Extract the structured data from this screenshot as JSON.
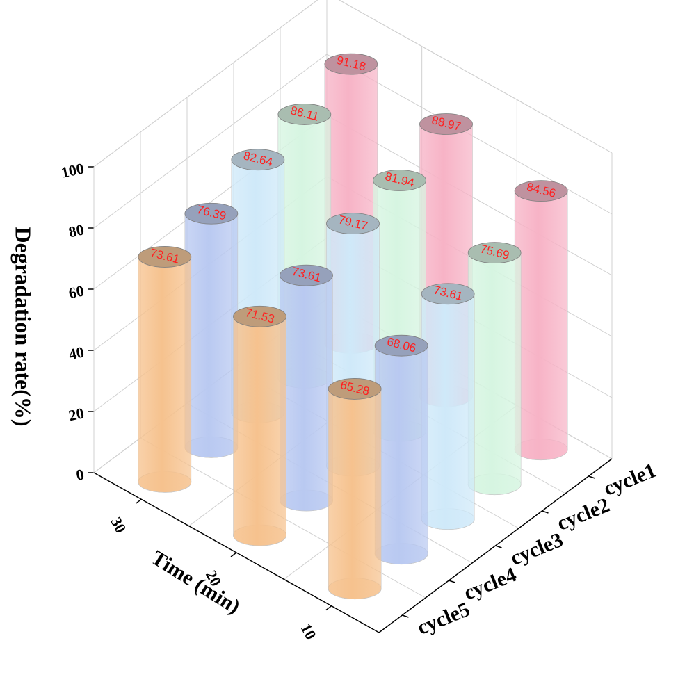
{
  "chart_data": {
    "type": "bar3d",
    "xlabel": "Time (min)",
    "ylabel": "Degradation rate(%)",
    "categories": [
      "30",
      "20",
      "10"
    ],
    "series": [
      {
        "name": "cycle1",
        "color": "#f7b3c6",
        "values": [
          91.18,
          88.97,
          84.56
        ]
      },
      {
        "name": "cycle2",
        "color": "#d6f5e1",
        "values": [
          86.11,
          81.94,
          75.69
        ]
      },
      {
        "name": "cycle3",
        "color": "#cfe9f9",
        "values": [
          82.64,
          79.17,
          73.61
        ]
      },
      {
        "name": "cycle4",
        "color": "#b9c9f1",
        "values": [
          76.39,
          73.61,
          68.06
        ]
      },
      {
        "name": "cycle5",
        "color": "#f6c28e",
        "values": [
          73.61,
          71.53,
          65.28
        ]
      }
    ],
    "ylim": [
      0,
      100
    ],
    "yticks": [
      0,
      20,
      40,
      60,
      80,
      100
    ],
    "grid": true
  }
}
